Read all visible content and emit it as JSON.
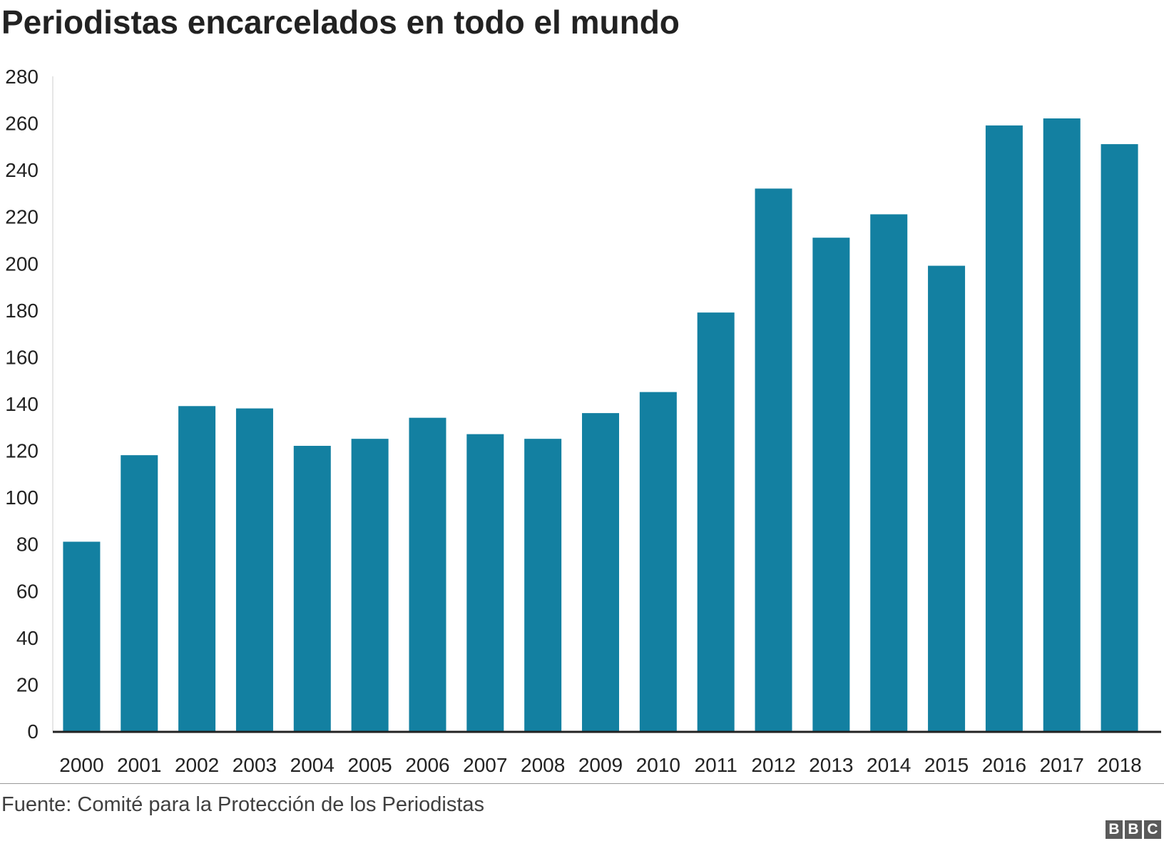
{
  "chart_data": {
    "type": "bar",
    "title": "Periodistas encarcelados en todo el mundo",
    "categories": [
      "2000",
      "2001",
      "2002",
      "2003",
      "2004",
      "2005",
      "2006",
      "2007",
      "2008",
      "2009",
      "2010",
      "2011",
      "2012",
      "2013",
      "2014",
      "2015",
      "2016",
      "2017",
      "2018"
    ],
    "values": [
      81,
      118,
      139,
      138,
      122,
      125,
      134,
      127,
      125,
      136,
      145,
      179,
      232,
      211,
      221,
      199,
      259,
      262,
      251
    ],
    "ylim": [
      0,
      280
    ],
    "yticks": [
      0,
      20,
      40,
      60,
      80,
      100,
      120,
      140,
      160,
      180,
      200,
      220,
      240,
      260,
      280
    ],
    "xlabel": "",
    "ylabel": "",
    "grid": false,
    "bar_color": "#1380A1",
    "axis_color": "#222222"
  },
  "footer": {
    "source": "Fuente: Comité para la Protección de los Periodistas",
    "logo_letters": [
      "B",
      "B",
      "C"
    ]
  }
}
